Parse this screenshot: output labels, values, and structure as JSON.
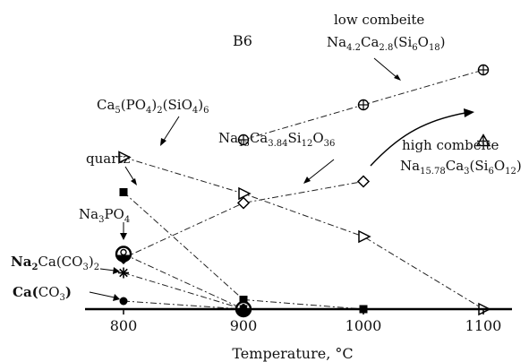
{
  "chart_data": {
    "type": "scatter",
    "title": "B6",
    "xlabel": "Temperature, °C",
    "ylabel": "",
    "xlim": [
      790,
      1130
    ],
    "ylim": [
      0,
      10
    ],
    "x_ticks": [
      800,
      900,
      1000,
      1100
    ],
    "grid": false,
    "series": [
      {
        "name": "low combeite Na4.2Ca2.8(Si6O18)",
        "marker": "circle-plus",
        "line": "dash-dot",
        "points": [
          [
            900,
            6.3
          ],
          [
            1000,
            7.6
          ],
          [
            1100,
            8.9
          ]
        ]
      },
      {
        "name": "high combeite Na15.78Ca3(Si6O12)",
        "marker": "triangle-plus",
        "line": "none",
        "points": [
          [
            1100,
            6.25
          ]
        ]
      },
      {
        "name": "Ca5(PO4)2(SiO4)6",
        "marker": "triangle-right",
        "line": "dash-dot",
        "points": [
          [
            800,
            5.65
          ],
          [
            900,
            4.3
          ],
          [
            1000,
            2.7
          ],
          [
            1100,
            0.0
          ]
        ]
      },
      {
        "name": "Na15Ca3.84Si12O36",
        "marker": "diamond",
        "line": "dash-dot",
        "points": [
          [
            800,
            1.9
          ],
          [
            900,
            3.95
          ],
          [
            1000,
            4.75
          ]
        ]
      },
      {
        "name": "quartz",
        "marker": "square",
        "line": "dash-dot",
        "points": [
          [
            800,
            4.35
          ],
          [
            900,
            0.35
          ],
          [
            1000,
            0.0
          ]
        ]
      },
      {
        "name": "Na3PO4",
        "marker": "circle-half",
        "line": "dash-dot",
        "points": [
          [
            800,
            2.05
          ],
          [
            900,
            0.0
          ]
        ]
      },
      {
        "name": "Na2Ca(CO3)2",
        "marker": "asterisk",
        "line": "dash-dot",
        "points": [
          [
            800,
            1.35
          ],
          [
            900,
            0.0
          ]
        ]
      },
      {
        "name": "Ca(CO3)",
        "marker": "circle",
        "line": "dash-dot",
        "points": [
          [
            800,
            0.3
          ],
          [
            900,
            0.0
          ]
        ]
      }
    ],
    "labels": {
      "low_combeite_1": "low combeite",
      "low_combeite_2_main": "Na",
      "low_combeite_2_s1": "4.2",
      "low_combeite_2_m2": "Ca",
      "low_combeite_2_s2": "2.8",
      "low_combeite_2_m3": "(Si",
      "low_combeite_2_s3": "6",
      "low_combeite_2_m4": "O",
      "low_combeite_2_s4": "18",
      "low_combeite_2_m5": ")",
      "high_combeite_1": "high combeite",
      "high_combeite_2_main": "Na",
      "high_combeite_2_s1": "15.78",
      "high_combeite_2_m2": "Ca",
      "high_combeite_2_s2": "3",
      "high_combeite_2_m3": "(Si",
      "high_combeite_2_s3": "6",
      "high_combeite_2_m4": "O",
      "high_combeite_2_s4": "12",
      "high_combeite_2_m5": ")",
      "apatite_m1": "Ca",
      "apatite_s1": "5",
      "apatite_m2": "(PO",
      "apatite_s2": "4",
      "apatite_m3": ")",
      "apatite_s3": "2",
      "apatite_m4": "(SiO",
      "apatite_s4": "4",
      "apatite_m5": ")",
      "apatite_s5": "6",
      "nacasi_m1": "Na",
      "nacasi_s1": "15",
      "nacasi_m2": "Ca",
      "nacasi_s2": "3.84",
      "nacasi_m3": "Si",
      "nacasi_s3": "12",
      "nacasi_m4": "O",
      "nacasi_s4": "36",
      "quartz": "quartz",
      "na3po4_m1": "Na",
      "na3po4_s1": "3",
      "na3po4_m2": "PO",
      "na3po4_s2": "4",
      "na2ca_m1": "Na",
      "na2ca_s1": "2",
      "na2ca_m2": "Ca(CO",
      "na2ca_s2": "3",
      "na2ca_m3": ")",
      "na2ca_s3": "2",
      "caco3_m1": "Ca(",
      "caco3_m2": "CO",
      "caco3_s2": "3",
      "caco3_m3": ")"
    }
  }
}
